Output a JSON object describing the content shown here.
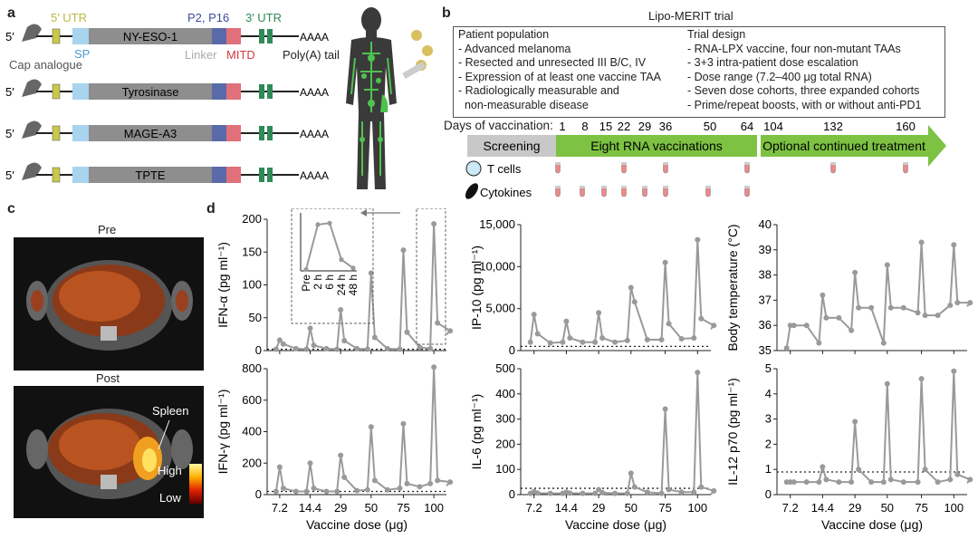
{
  "panels": {
    "a": "a",
    "b": "b",
    "c": "c",
    "d": "d"
  },
  "construct": {
    "five_prime": "5′",
    "labels": {
      "utr5": "5′ UTR",
      "p2p16": "P2, P16",
      "utr3": "3′ UTR",
      "sp": "SP",
      "linker": "Linker",
      "mitd": "MITD",
      "cap": "Cap analogue",
      "polya": "Poly(A) tail"
    },
    "polya_text": "AAAA",
    "antigens": [
      "NY-ESO-1",
      "Tyrosinase",
      "MAGE-A3",
      "TPTE"
    ],
    "colors": {
      "utr5": "#c8c84a",
      "sp": "#a8d4ee",
      "core": "#8e8e8e",
      "p2p16": "#5a6aa8",
      "mitd": "#e0707a",
      "utr3": "#2e8b57"
    }
  },
  "trial": {
    "title": "Lipo-MERIT trial",
    "population_heading": "Patient population",
    "population": [
      "- Advanced melanoma",
      "- Resected and unresected III B/C, IV",
      "- Expression of at least one vaccine TAA",
      "- Radiologically measurable and",
      "  non-measurable disease"
    ],
    "design_heading": "Trial design",
    "design": [
      "- RNA-LPX vaccine, four non-mutant TAAs",
      "- 3+3 intra-patient dose escalation",
      "- Dose range (7.2–400 μg total RNA)",
      "- Seven dose cohorts, three expanded cohorts",
      "- Prime/repeat boosts, with or without anti-PD1"
    ],
    "days_label": "Days of vaccination:",
    "days": [
      "1",
      "8",
      "15",
      "22",
      "29",
      "36",
      "50",
      "64",
      "104",
      "132",
      "160"
    ],
    "phases": [
      "Screening",
      "Eight RNA vaccinations",
      "Optional continued treatment"
    ],
    "legend": {
      "tcells": "T cells",
      "cytokines": "Cytokines"
    }
  },
  "pet": {
    "pre": "Pre",
    "post": "Post",
    "spleen": "Spleen",
    "high": "High",
    "low": "Low"
  },
  "chart_data": [
    {
      "id": "ifna",
      "type": "line",
      "ylabel": "IFN-α (pg ml⁻¹)",
      "ylim": [
        0,
        200
      ],
      "yticks": [
        "0",
        "50",
        "100",
        "150",
        "200"
      ],
      "xlabel": "",
      "peaks": [
        {
          "dose": "7.2",
          "values": [
            2,
            16,
            10,
            3
          ]
        },
        {
          "dose": "14.4",
          "values": [
            2,
            34,
            8,
            3
          ]
        },
        {
          "dose": "29",
          "values": [
            2,
            62,
            15,
            3
          ]
        },
        {
          "dose": "50",
          "values": [
            2,
            118,
            20,
            3
          ]
        },
        {
          "dose": "75",
          "values": [
            2,
            153,
            28,
            5
          ]
        },
        {
          "dose": "100",
          "values": [
            3,
            193,
            42,
            30
          ]
        }
      ],
      "inset": {
        "categories": [
          "Pre",
          "2 h",
          "6 h",
          "24 h",
          "48 h"
        ],
        "values": [
          5,
          165,
          170,
          40,
          10
        ]
      }
    },
    {
      "id": "ip10",
      "type": "line",
      "ylabel": "IP-10 (pg ml⁻¹)",
      "ylim": [
        0,
        15000
      ],
      "yticks": [
        "0",
        "5,000",
        "10,000",
        "15,000"
      ],
      "xlabel": "",
      "peaks": [
        {
          "dose": "7.2",
          "values": [
            1000,
            4300,
            2000,
            900
          ]
        },
        {
          "dose": "14.4",
          "values": [
            1000,
            3500,
            1500,
            1000
          ]
        },
        {
          "dose": "29",
          "values": [
            1000,
            4500,
            1500,
            1000
          ]
        },
        {
          "dose": "50",
          "values": [
            1200,
            7500,
            5800,
            1300
          ]
        },
        {
          "dose": "75",
          "values": [
            1300,
            10500,
            3200,
            1400
          ]
        },
        {
          "dose": "100",
          "values": [
            1500,
            13200,
            3800,
            3000
          ]
        }
      ]
    },
    {
      "id": "temp",
      "type": "line",
      "ylabel": "Body temperature (°C)",
      "ylim": [
        35,
        40
      ],
      "yticks": [
        "35",
        "36",
        "37",
        "38",
        "39",
        "40"
      ],
      "xlabel": "",
      "peaks": [
        {
          "dose": "7.2",
          "values": [
            35.1,
            36.0,
            36.0,
            36.0
          ]
        },
        {
          "dose": "14.4",
          "values": [
            35.3,
            37.2,
            36.3,
            36.3
          ]
        },
        {
          "dose": "29",
          "values": [
            35.8,
            38.1,
            36.7,
            36.7
          ]
        },
        {
          "dose": "50",
          "values": [
            35.3,
            38.4,
            36.7,
            36.7
          ]
        },
        {
          "dose": "75",
          "values": [
            36.5,
            39.3,
            36.4,
            36.4
          ]
        },
        {
          "dose": "100",
          "values": [
            36.8,
            39.2,
            36.9,
            36.9
          ]
        }
      ]
    },
    {
      "id": "ifng",
      "type": "line",
      "ylabel": "IFN-γ (pg ml⁻¹)",
      "ylim": [
        0,
        800
      ],
      "yticks": [
        "0",
        "200",
        "400",
        "600",
        "800"
      ],
      "xlabel": "Vaccine dose (μg)",
      "peaks": [
        {
          "dose": "7.2",
          "values": [
            20,
            175,
            40,
            20
          ]
        },
        {
          "dose": "14.4",
          "values": [
            20,
            200,
            40,
            20
          ]
        },
        {
          "dose": "29",
          "values": [
            20,
            250,
            110,
            25
          ]
        },
        {
          "dose": "50",
          "values": [
            30,
            430,
            90,
            30
          ]
        },
        {
          "dose": "75",
          "values": [
            40,
            450,
            70,
            50
          ]
        },
        {
          "dose": "100",
          "values": [
            70,
            810,
            90,
            80
          ]
        }
      ]
    },
    {
      "id": "il6",
      "type": "line",
      "ylabel": "IL-6 (pg ml⁻¹)",
      "ylim": [
        0,
        500
      ],
      "yticks": [
        "0",
        "100",
        "200",
        "300",
        "400",
        "500"
      ],
      "xlabel": "Vaccine dose (μg)",
      "peaks": [
        {
          "dose": "7.2",
          "values": [
            5,
            12,
            6,
            5
          ]
        },
        {
          "dose": "14.4",
          "values": [
            5,
            10,
            6,
            5
          ]
        },
        {
          "dose": "29",
          "values": [
            5,
            20,
            8,
            5
          ]
        },
        {
          "dose": "50",
          "values": [
            5,
            85,
            30,
            10
          ]
        },
        {
          "dose": "75",
          "values": [
            5,
            340,
            20,
            10
          ]
        },
        {
          "dose": "100",
          "values": [
            10,
            485,
            30,
            15
          ]
        }
      ]
    },
    {
      "id": "il12",
      "type": "line",
      "ylabel": "IL-12 p70 (pg ml⁻¹)",
      "ylim": [
        0,
        5
      ],
      "yticks": [
        "0",
        "1",
        "2",
        "3",
        "4",
        "5"
      ],
      "xlabel": "Vaccine dose (μg)",
      "peaks": [
        {
          "dose": "7.2",
          "values": [
            0.5,
            0.5,
            0.5,
            0.5
          ]
        },
        {
          "dose": "14.4",
          "values": [
            0.5,
            1.1,
            0.6,
            0.5
          ]
        },
        {
          "dose": "29",
          "values": [
            0.5,
            2.9,
            1.0,
            0.5
          ]
        },
        {
          "dose": "50",
          "values": [
            0.5,
            4.4,
            0.6,
            0.5
          ]
        },
        {
          "dose": "75",
          "values": [
            0.5,
            4.6,
            1.0,
            0.5
          ]
        },
        {
          "dose": "100",
          "values": [
            0.6,
            4.9,
            0.8,
            0.6
          ]
        }
      ]
    }
  ],
  "threshold": {
    "ifna": 2,
    "ip10": 500,
    "ifng": 20,
    "il6": 25,
    "il12": 0.9
  }
}
